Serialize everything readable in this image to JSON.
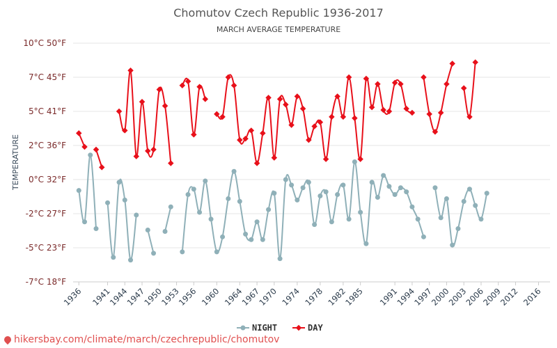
{
  "chart_data": {
    "type": "line",
    "title": "Chomutov Czech Republic 1936-2017",
    "subtitle": "MARCH AVERAGE TEMPERATURE",
    "ylabel": "TEMPERATURE",
    "xlabel": "",
    "ylim": [
      -7,
      10
    ],
    "y_ticks": [
      {
        "value": 10,
        "label": "10°C 50°F"
      },
      {
        "value": 7.5,
        "label": "7°C 45°F"
      },
      {
        "value": 5,
        "label": "5°C 41°F"
      },
      {
        "value": 2.5,
        "label": "2°C 36°F"
      },
      {
        "value": 0,
        "label": "0°C 32°F"
      },
      {
        "value": -2.5,
        "label": "-2°C 27°F"
      },
      {
        "value": -5,
        "label": "-5°C 23°F"
      },
      {
        "value": -7.5,
        "label": "-7°C 18°F"
      }
    ],
    "x_tick_labels": [
      "1936",
      "1941",
      "1944",
      "1947",
      "1950",
      "1953",
      "1956",
      "1960",
      "1964",
      "1967",
      "1970",
      "1974",
      "1978",
      "1982",
      "1985",
      "1991",
      "1994",
      "1997",
      "2000",
      "2003",
      "2006",
      "2009",
      "2012",
      "2016"
    ],
    "legend_position": "bottom-center",
    "grid": true,
    "series": [
      {
        "name": "NIGHT",
        "color": "#8fb0b8",
        "points": [
          [
            1936,
            -0.8
          ],
          [
            1937,
            -3.1
          ],
          [
            1938,
            1.8
          ],
          [
            1939,
            -3.6
          ],
          [
            1941,
            -1.7
          ],
          [
            1942,
            -5.7
          ],
          [
            1943,
            -0.2
          ],
          [
            1944,
            -1.5
          ],
          [
            1945,
            -5.9
          ],
          [
            1946,
            -2.6
          ],
          [
            1948,
            -3.7
          ],
          [
            1949,
            -5.4
          ],
          [
            1951,
            -3.8
          ],
          [
            1952,
            -2.0
          ],
          [
            1954,
            -5.3
          ],
          [
            1955,
            -1.1
          ],
          [
            1956,
            -0.7
          ],
          [
            1957,
            -2.4
          ],
          [
            1958,
            -0.1
          ],
          [
            1959,
            -2.9
          ],
          [
            1960,
            -5.3
          ],
          [
            1961,
            -4.2
          ],
          [
            1962,
            -1.4
          ],
          [
            1963,
            0.6
          ],
          [
            1964,
            -1.6
          ],
          [
            1965,
            -4.0
          ],
          [
            1966,
            -4.4
          ],
          [
            1967,
            -3.1
          ],
          [
            1968,
            -4.4
          ],
          [
            1969,
            -2.2
          ],
          [
            1970,
            -1.0
          ],
          [
            1971,
            -5.8
          ],
          [
            1972,
            0.0
          ],
          [
            1973,
            -0.4
          ],
          [
            1974,
            -1.5
          ],
          [
            1975,
            -0.6
          ],
          [
            1976,
            -0.2
          ],
          [
            1977,
            -3.3
          ],
          [
            1978,
            -1.2
          ],
          [
            1979,
            -0.9
          ],
          [
            1980,
            -3.1
          ],
          [
            1981,
            -1.1
          ],
          [
            1982,
            -0.4
          ],
          [
            1983,
            -2.9
          ],
          [
            1984,
            1.3
          ],
          [
            1985,
            -2.4
          ],
          [
            1986,
            -4.7
          ],
          [
            1987,
            -0.2
          ],
          [
            1988,
            -1.3
          ],
          [
            1989,
            0.3
          ],
          [
            1990,
            -0.5
          ],
          [
            1991,
            -1.1
          ],
          [
            1992,
            -0.6
          ],
          [
            1993,
            -0.9
          ],
          [
            1994,
            -2.0
          ],
          [
            1995,
            -2.9
          ],
          [
            1996,
            -4.2
          ],
          [
            1998,
            -0.6
          ],
          [
            1999,
            -2.8
          ],
          [
            2000,
            -1.4
          ],
          [
            2001,
            -4.8
          ],
          [
            2002,
            -3.6
          ],
          [
            2003,
            -1.6
          ],
          [
            2004,
            -0.7
          ],
          [
            2005,
            -1.9
          ],
          [
            2006,
            -2.9
          ],
          [
            2007,
            -1.0
          ]
        ]
      },
      {
        "name": "DAY",
        "color": "#e8101a",
        "points": [
          [
            1936,
            3.4
          ],
          [
            1937,
            2.4
          ],
          [
            1939,
            2.2
          ],
          [
            1940,
            0.9
          ],
          [
            1943,
            5.0
          ],
          [
            1944,
            3.6
          ],
          [
            1945,
            8.0
          ],
          [
            1946,
            1.7
          ],
          [
            1947,
            5.7
          ],
          [
            1948,
            2.1
          ],
          [
            1949,
            2.2
          ],
          [
            1950,
            6.6
          ],
          [
            1951,
            5.4
          ],
          [
            1952,
            1.2
          ],
          [
            1954,
            6.9
          ],
          [
            1955,
            7.2
          ],
          [
            1956,
            3.3
          ],
          [
            1957,
            6.8
          ],
          [
            1958,
            5.9
          ],
          [
            1960,
            4.8
          ],
          [
            1961,
            4.6
          ],
          [
            1962,
            7.5
          ],
          [
            1963,
            6.9
          ],
          [
            1964,
            2.9
          ],
          [
            1965,
            3.0
          ],
          [
            1966,
            3.6
          ],
          [
            1967,
            1.2
          ],
          [
            1968,
            3.4
          ],
          [
            1969,
            6.0
          ],
          [
            1970,
            1.6
          ],
          [
            1971,
            5.9
          ],
          [
            1972,
            5.5
          ],
          [
            1973,
            4.0
          ],
          [
            1974,
            6.1
          ],
          [
            1975,
            5.2
          ],
          [
            1976,
            2.9
          ],
          [
            1977,
            3.9
          ],
          [
            1978,
            4.2
          ],
          [
            1979,
            1.5
          ],
          [
            1980,
            4.6
          ],
          [
            1981,
            6.1
          ],
          [
            1982,
            4.6
          ],
          [
            1983,
            7.5
          ],
          [
            1984,
            4.5
          ],
          [
            1985,
            1.5
          ],
          [
            1986,
            7.4
          ],
          [
            1987,
            5.3
          ],
          [
            1988,
            7.0
          ],
          [
            1989,
            5.1
          ],
          [
            1990,
            5.0
          ],
          [
            1991,
            7.1
          ],
          [
            1992,
            7.0
          ],
          [
            1993,
            5.2
          ],
          [
            1994,
            4.9
          ],
          [
            1996,
            7.5
          ],
          [
            1997,
            4.8
          ],
          [
            1998,
            3.5
          ],
          [
            1999,
            4.9
          ],
          [
            2000,
            7.0
          ],
          [
            2001,
            8.5
          ],
          [
            2003,
            6.7
          ],
          [
            2004,
            4.6
          ],
          [
            2005,
            8.6
          ]
        ]
      }
    ]
  },
  "source_text": "hikersbay.com/climate/march/czechrepublic/chomutov"
}
